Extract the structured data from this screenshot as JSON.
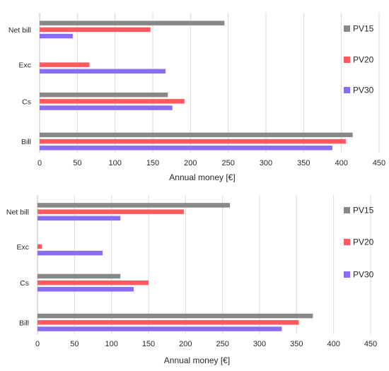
{
  "chart_data": [
    {
      "type": "bar",
      "orientation": "horizontal",
      "categories": [
        "Net bill",
        "Exc",
        "Cs",
        "Bill"
      ],
      "series": [
        {
          "name": "PV15",
          "color": "#888888",
          "values": [
            245,
            0,
            170,
            415
          ]
        },
        {
          "name": "PV20",
          "color": "#ff5a5f",
          "values": [
            147,
            66,
            192,
            406
          ]
        },
        {
          "name": "PV30",
          "color": "#8b6cf5",
          "values": [
            44,
            167,
            176,
            388
          ]
        }
      ],
      "xlabel": "Annual money [€]",
      "xlim": [
        0,
        450
      ],
      "xticks": [
        "0",
        "50",
        "100",
        "150",
        "200",
        "250",
        "300",
        "350",
        "400",
        "450"
      ],
      "grid": "vertical",
      "legend": "right"
    },
    {
      "type": "bar",
      "orientation": "horizontal",
      "categories": [
        "Net bill",
        "Exc",
        "Cs",
        "Bill"
      ],
      "series": [
        {
          "name": "PV15",
          "color": "#888888",
          "values": [
            260,
            0,
            112,
            372
          ]
        },
        {
          "name": "PV20",
          "color": "#ff5a5f",
          "values": [
            198,
            6,
            150,
            353
          ]
        },
        {
          "name": "PV30",
          "color": "#8b6cf5",
          "values": [
            112,
            88,
            130,
            330
          ]
        }
      ],
      "xlabel": "Annual money [€]",
      "xlim": [
        0,
        450
      ],
      "xticks": [
        "0",
        "50",
        "100",
        "150",
        "200",
        "250",
        "300",
        "350",
        "400",
        "450"
      ],
      "grid": "vertical",
      "legend": "right"
    }
  ]
}
